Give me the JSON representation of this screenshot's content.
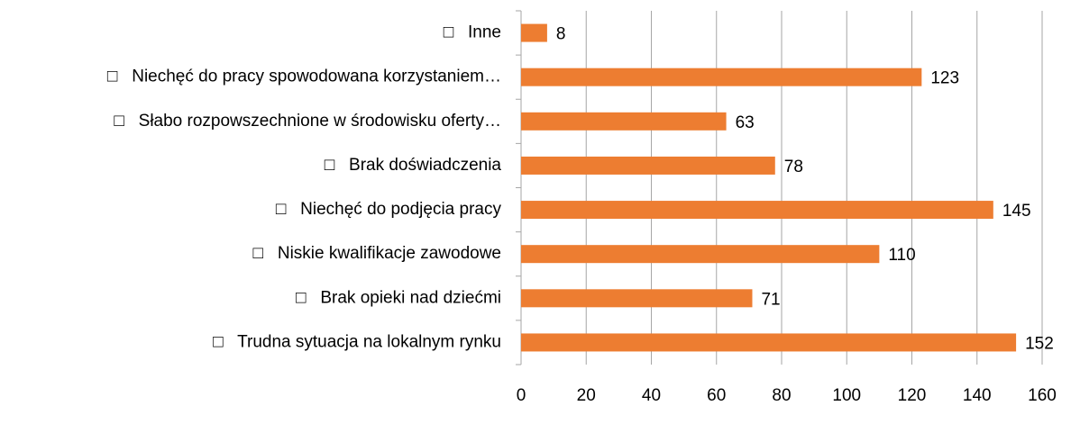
{
  "chart_data": {
    "type": "bar",
    "categories": [
      "□   Inne",
      "□   Niechęć do pracy spowodowana korzystaniem…",
      "□   Słabo rozpowszechnione w środowisku oferty…",
      "□   Brak doświadczenia",
      "□   Niechęć do podjęcia pracy",
      "□   Niskie kwalifikacje zawodowe",
      "□   Brak opieki nad dziećmi",
      "□   Trudna sytuacja na lokalnym rynku"
    ],
    "values": [
      8,
      123,
      63,
      78,
      145,
      110,
      71,
      152
    ],
    "color": "#ed7d31",
    "xlim": [
      0,
      160
    ],
    "xticks": [
      0,
      20,
      40,
      60,
      80,
      100,
      120,
      140,
      160
    ],
    "grid": true
  }
}
